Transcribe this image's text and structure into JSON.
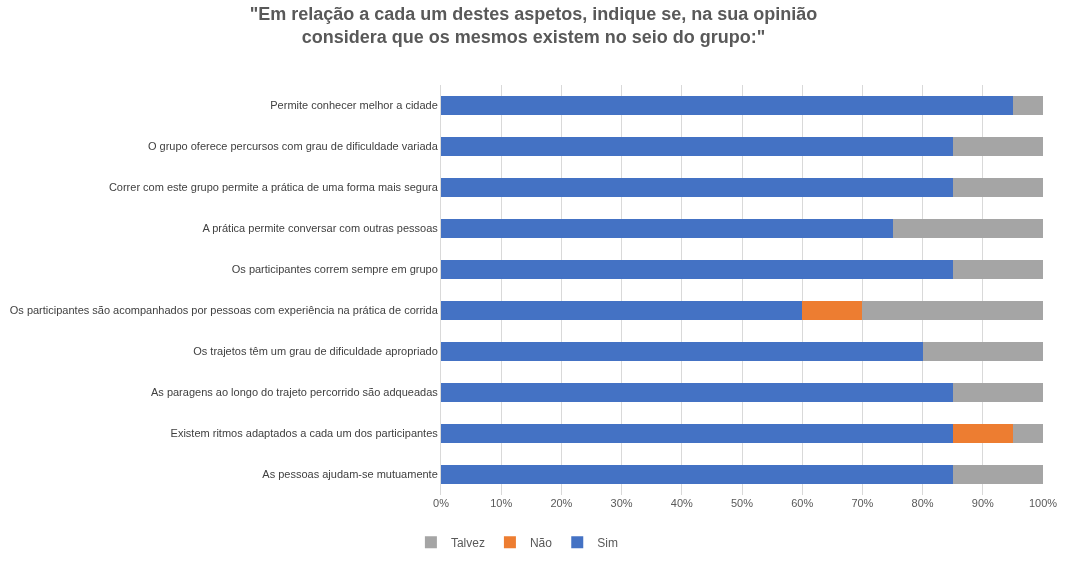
{
  "chart_data": {
    "type": "bar",
    "orientation": "horizontal",
    "stacked": true,
    "title": "\"Em relação a cada um destes aspetos, indique se, na sua opinião\nconsidera que os mesmos existem no seio do grupo:\"",
    "categories": [
      "Permite conhecer melhor a cidade",
      "O grupo oferece percursos com grau de dificuldade variada",
      "Correr com este grupo permite a prática de uma forma mais segura",
      "A prática permite conversar com outras pessoas",
      "Os participantes correm sempre em grupo",
      "Os participantes são acompanhados por pessoas com experiência na prática de corrida",
      "Os trajetos têm um grau de dificuldade apropriado",
      "As paragens ao longo do trajeto percorrido são adqueadas",
      "Existem ritmos adaptados a cada um dos participantes",
      "As pessoas ajudam-se mutuamente"
    ],
    "series": [
      {
        "name": "Sim",
        "color": "#4472c4",
        "values": [
          95,
          85,
          85,
          75,
          85,
          60,
          80,
          85,
          85,
          85
        ]
      },
      {
        "name": "Não",
        "color": "#ed7d31",
        "values": [
          0,
          0,
          0,
          0,
          0,
          10,
          0,
          0,
          10,
          0
        ]
      },
      {
        "name": "Talvez",
        "color": "#a5a5a5",
        "values": [
          5,
          15,
          15,
          25,
          15,
          30,
          20,
          15,
          5,
          15
        ]
      }
    ],
    "xlim": [
      0,
      100
    ],
    "xticks": [
      {
        "value": 0,
        "label": "0%"
      },
      {
        "value": 10,
        "label": "10%"
      },
      {
        "value": 20,
        "label": "20%"
      },
      {
        "value": 30,
        "label": "30%"
      },
      {
        "value": 40,
        "label": "40%"
      },
      {
        "value": 50,
        "label": "50%"
      },
      {
        "value": 60,
        "label": "60%"
      },
      {
        "value": 70,
        "label": "70%"
      },
      {
        "value": 80,
        "label": "80%"
      },
      {
        "value": 90,
        "label": "90%"
      },
      {
        "value": 100,
        "label": "100%"
      }
    ],
    "grid": "x",
    "legend": "bottom"
  }
}
